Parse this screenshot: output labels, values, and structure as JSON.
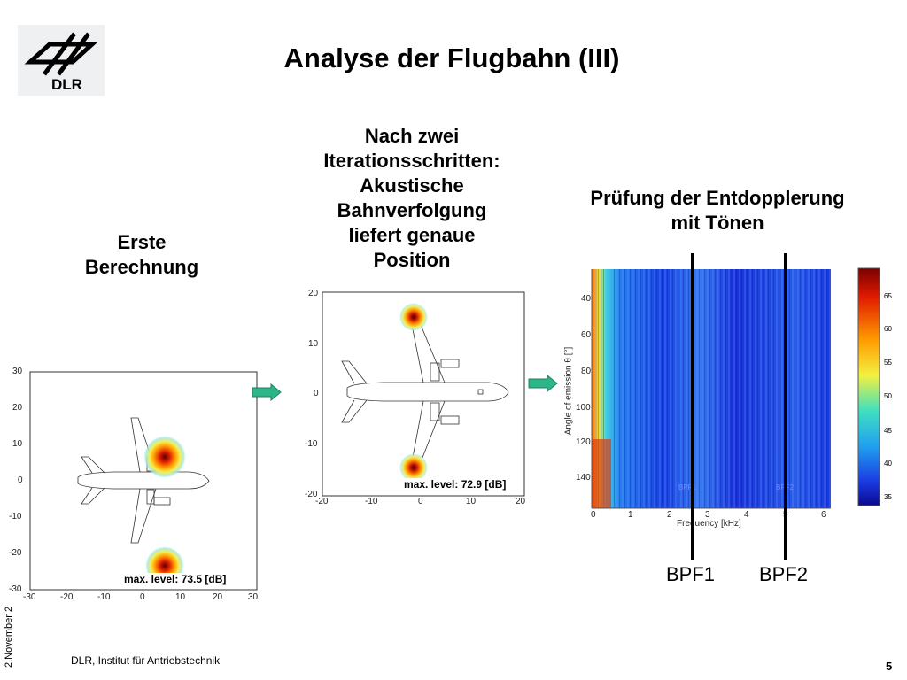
{
  "slide": {
    "title": "Analyse der Flugbahn (III)",
    "logo_text": "DLR",
    "sub_left": [
      "Erste",
      "Berechnung"
    ],
    "sub_mid": [
      "Nach zwei",
      "Iterationsschritten:",
      "Akustische",
      "Bahnverfolgung",
      "liefert genaue",
      "Position"
    ],
    "sub_right": [
      "Prüfung der Entdopplerung",
      "mit Tönen"
    ],
    "footer": "DLR, Institut für Antriebstechnik",
    "page_number": "5",
    "date_side": "2.November 2"
  },
  "plot_left": {
    "x_ticks": [
      "-30",
      "-20",
      "-10",
      "0",
      "10",
      "20",
      "30"
    ],
    "y_ticks": [
      "30",
      "20",
      "10",
      "0",
      "-10",
      "-20",
      "-30"
    ],
    "max_level": "max. level: 73.5 [dB]"
  },
  "plot_mid": {
    "x_ticks": [
      "-20",
      "-10",
      "0",
      "10",
      "20"
    ],
    "y_ticks": [
      "20",
      "10",
      "0",
      "-10",
      "-20"
    ],
    "max_level": "max. level: 72.9 [dB]"
  },
  "spectrogram": {
    "xlabel": "Frequency [kHz]",
    "ylabel": "Angle of emission θ [°]",
    "x_ticks": [
      "0",
      "1",
      "2",
      "3",
      "4",
      "5",
      "6"
    ],
    "y_ticks": [
      "40",
      "60",
      "80",
      "100",
      "120",
      "140"
    ],
    "colorbar_ticks": [
      "65",
      "60",
      "55",
      "50",
      "45",
      "40",
      "35"
    ],
    "inner_bpf1": "BPF1",
    "inner_bpf2": "BPF2",
    "bpf1": "BPF1",
    "bpf2": "BPF2"
  },
  "colors": {
    "arrow": "#2db58a",
    "heat_center": "#8b0000",
    "spectro_blue": "#1a2fd8"
  }
}
